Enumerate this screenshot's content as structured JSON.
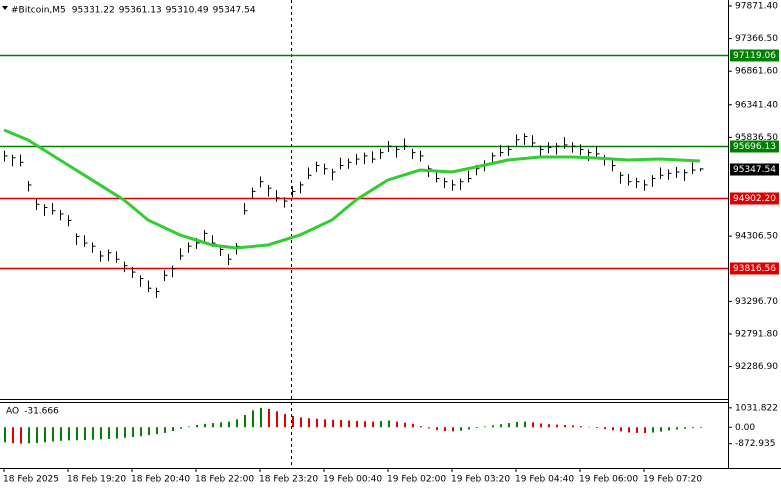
{
  "chart_data": {
    "type": "ohlc",
    "title": "#Bitcoin,M5",
    "header_values": [
      95331.22,
      95361.13,
      95310.49,
      95347.54
    ],
    "categories": [
      "18 Feb 2025",
      null,
      null,
      null,
      null,
      null,
      null,
      null,
      "18 Feb 19:20",
      null,
      null,
      null,
      null,
      null,
      null,
      null,
      "18 Feb 20:40",
      null,
      null,
      null,
      null,
      null,
      null,
      null,
      "18 Feb 22:00",
      null,
      null,
      null,
      null,
      null,
      null,
      null,
      "18 Feb 23:20",
      null,
      null,
      null,
      null,
      null,
      null,
      null,
      "19 Feb 00:40",
      null,
      null,
      null,
      null,
      null,
      null,
      null,
      "19 Feb 02:00",
      null,
      null,
      null,
      null,
      null,
      null,
      null,
      "19 Feb 03:20",
      null,
      null,
      null,
      null,
      null,
      null,
      null,
      "19 Feb 04:40",
      null,
      null,
      null,
      null,
      null,
      null,
      null,
      "19 Feb 06:00",
      null,
      null,
      null,
      null,
      null,
      null,
      null,
      "19 Feb 07:20",
      null,
      null,
      null,
      null,
      null,
      null,
      null
    ],
    "close": [
      95550,
      95520,
      95450,
      95100,
      94800,
      94750,
      94700,
      94650,
      94550,
      94300,
      94200,
      94150,
      94000,
      94050,
      93950,
      93850,
      93750,
      93650,
      93500,
      93450,
      93700,
      93800,
      94000,
      94150,
      94200,
      94350,
      94200,
      94100,
      93950,
      94150,
      94700,
      95000,
      95150,
      95050,
      94900,
      94850,
      95000,
      95100,
      95250,
      95400,
      95350,
      95300,
      95400,
      95450,
      95500,
      95550,
      95500,
      95600,
      95700,
      95650,
      95700,
      95600,
      95550,
      95350,
      95200,
      95150,
      95100,
      95150,
      95200,
      95350,
      95400,
      95550,
      95600,
      95650,
      95800,
      95850,
      95750,
      95650,
      95680,
      95700,
      95720,
      95700,
      95650,
      95600,
      95580,
      95500,
      95400,
      95250,
      95150,
      95150,
      95100,
      95200,
      95250,
      95280,
      95300,
      95290,
      95330,
      95347.54
    ],
    "high": [
      95630,
      95570,
      95570,
      95160,
      94880,
      94800,
      94820,
      94710,
      94630,
      94350,
      94320,
      94210,
      94080,
      94100,
      94070,
      93910,
      93830,
      93700,
      93620,
      93510,
      93780,
      93850,
      94120,
      94210,
      94280,
      94400,
      94320,
      94160,
      94030,
      94200,
      94820,
      95060,
      95230,
      95100,
      95020,
      94910,
      95080,
      95150,
      95370,
      95460,
      95430,
      95350,
      95520,
      95510,
      95580,
      95600,
      95620,
      95660,
      95780,
      95700,
      95820,
      95660,
      95630,
      95400,
      95320,
      95210,
      95180,
      95200,
      95320,
      95410,
      95480,
      95600,
      95720,
      95710,
      95880,
      95900,
      95870,
      95710,
      95760,
      95750,
      95840,
      95760,
      95730,
      95650,
      95700,
      95560,
      95480,
      95300,
      95270,
      95210,
      95180,
      95250,
      95370,
      95340,
      95380,
      95340,
      95450,
      95361.13
    ],
    "low": [
      95460,
      95390,
      95390,
      95000,
      94710,
      94620,
      94640,
      94550,
      94460,
      94170,
      94140,
      94050,
      93910,
      93920,
      93890,
      93750,
      93660,
      93520,
      93440,
      93350,
      93610,
      93670,
      93940,
      94050,
      94110,
      94220,
      94140,
      94000,
      93860,
      94020,
      94640,
      94900,
      95060,
      94920,
      94840,
      94750,
      94910,
      94970,
      95190,
      95300,
      95260,
      95170,
      95340,
      95350,
      95410,
      95420,
      95440,
      95500,
      95610,
      95520,
      95640,
      95500,
      95460,
      95220,
      95140,
      95050,
      95010,
      95020,
      95140,
      95250,
      95310,
      95420,
      95540,
      95550,
      95710,
      95720,
      95690,
      95550,
      95590,
      95570,
      95660,
      95600,
      95560,
      95470,
      95520,
      95400,
      95310,
      95120,
      95090,
      95050,
      95010,
      95070,
      95190,
      95180,
      95210,
      95160,
      95270,
      95310.49
    ],
    "bar_color": "#000000",
    "ma": {
      "color": "#32cd32",
      "x": [
        0,
        3,
        7,
        11,
        15,
        18,
        22,
        26,
        29,
        33,
        37,
        41,
        44,
        48,
        52,
        56,
        59,
        63,
        67,
        71,
        74,
        78,
        82,
        87
      ],
      "values": [
        95951,
        95796,
        95486,
        95177,
        94867,
        94557,
        94325,
        94170,
        94123,
        94170,
        94325,
        94557,
        94867,
        95177,
        95331,
        95300,
        95378,
        95486,
        95533,
        95533,
        95517,
        95486,
        95502,
        95470
      ]
    },
    "ylim": [
      91800,
      97964
    ],
    "yticks": [
      {
        "value": 97871.4,
        "label": "97871.40"
      },
      {
        "value": 97366.5,
        "label": "97366.50"
      },
      {
        "value": 96861.6,
        "label": "96861.60"
      },
      {
        "value": 96341.4,
        "label": "96341.40"
      },
      {
        "value": 95836.5,
        "label": "95836.50"
      },
      {
        "value": 94306.5,
        "label": "94306.50"
      },
      {
        "value": 93296.7,
        "label": "93296.70"
      },
      {
        "value": 92791.8,
        "label": "92791.80"
      },
      {
        "value": 92286.9,
        "label": "92286.90"
      }
    ],
    "levels": [
      {
        "value": 97119.06,
        "color": "#008000"
      },
      {
        "value": 95696.13,
        "color": "#008000"
      },
      {
        "value": 94902.2,
        "label": "94902.20",
        "color": "#e00000"
      },
      {
        "value": 93816.56,
        "color": "#e00000"
      }
    ],
    "price": 95347.54,
    "ao": {
      "name": "AO",
      "current": -31.666,
      "up_color": "#008000",
      "down_color": "#e00000",
      "values": [
        -800,
        -850,
        -870,
        -860,
        -840,
        -800,
        -760,
        -720,
        -700,
        -690,
        -680,
        -660,
        -640,
        -620,
        -600,
        -560,
        -520,
        -480,
        -420,
        -360,
        -300,
        -200,
        -80,
        40,
        120,
        180,
        220,
        260,
        300,
        420,
        650,
        900,
        1031.822,
        980,
        850,
        700,
        600,
        520,
        480,
        450,
        420,
        400,
        380,
        360,
        340,
        320,
        300,
        330,
        360,
        300,
        240,
        180,
        60,
        -60,
        -150,
        -200,
        -220,
        -180,
        -120,
        -40,
        40,
        100,
        160,
        220,
        280,
        300,
        260,
        200,
        160,
        140,
        120,
        100,
        60,
        20,
        -40,
        -100,
        -160,
        -220,
        -280,
        -300,
        -310,
        -280,
        -230,
        -170,
        -120,
        -80,
        -50,
        -31.666
      ],
      "ylim": [
        -2165,
        1289
      ],
      "yticks": [
        1031.822,
        {
          "value": 0,
          "label": "0.00"
        },
        -872.935
      ]
    }
  }
}
